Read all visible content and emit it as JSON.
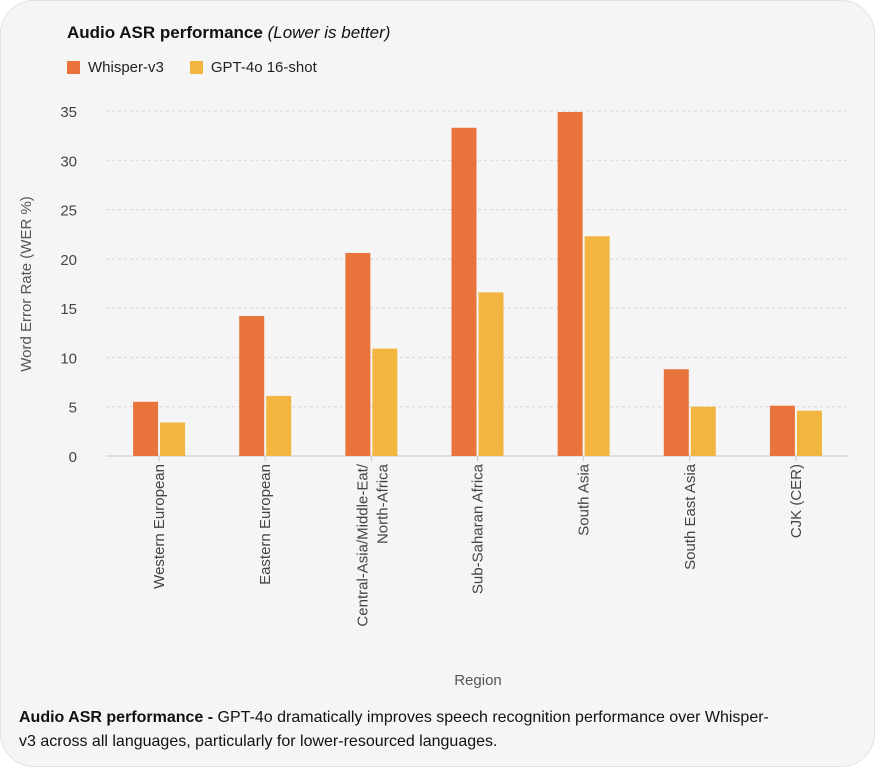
{
  "header": {
    "title_bold": "Audio ASR performance",
    "title_italic": "(Lower is better)"
  },
  "caption": {
    "bold": "Audio ASR performance -",
    "text": "GPT-4o dramatically improves speech recognition performance over Whisper-v3 across all languages, particularly for lower-resourced languages."
  },
  "chart_data": {
    "type": "bar",
    "xlabel": "Region",
    "ylabel": "Word Error Rate (WER %)",
    "ylim": [
      0,
      35
    ],
    "yticks": [
      0,
      5,
      10,
      15,
      20,
      25,
      30,
      35
    ],
    "grid": true,
    "legend_position": "top-left",
    "categories": [
      "Western European",
      "Eastern European",
      "Central-Asia/Middle-Eat/ North-Africa",
      "Sub-Saharan Africa",
      "South Asia",
      "South East Asia",
      "CJK (CER)"
    ],
    "series": [
      {
        "name": "Whisper-v3",
        "color": "#e8743b",
        "values": [
          5.5,
          14.2,
          20.6,
          33.3,
          34.9,
          8.8,
          5.1
        ]
      },
      {
        "name": "GPT-4o 16-shot",
        "color": "#f2b640",
        "values": [
          3.4,
          6.1,
          10.9,
          16.6,
          22.3,
          5.0,
          4.6
        ]
      }
    ]
  }
}
